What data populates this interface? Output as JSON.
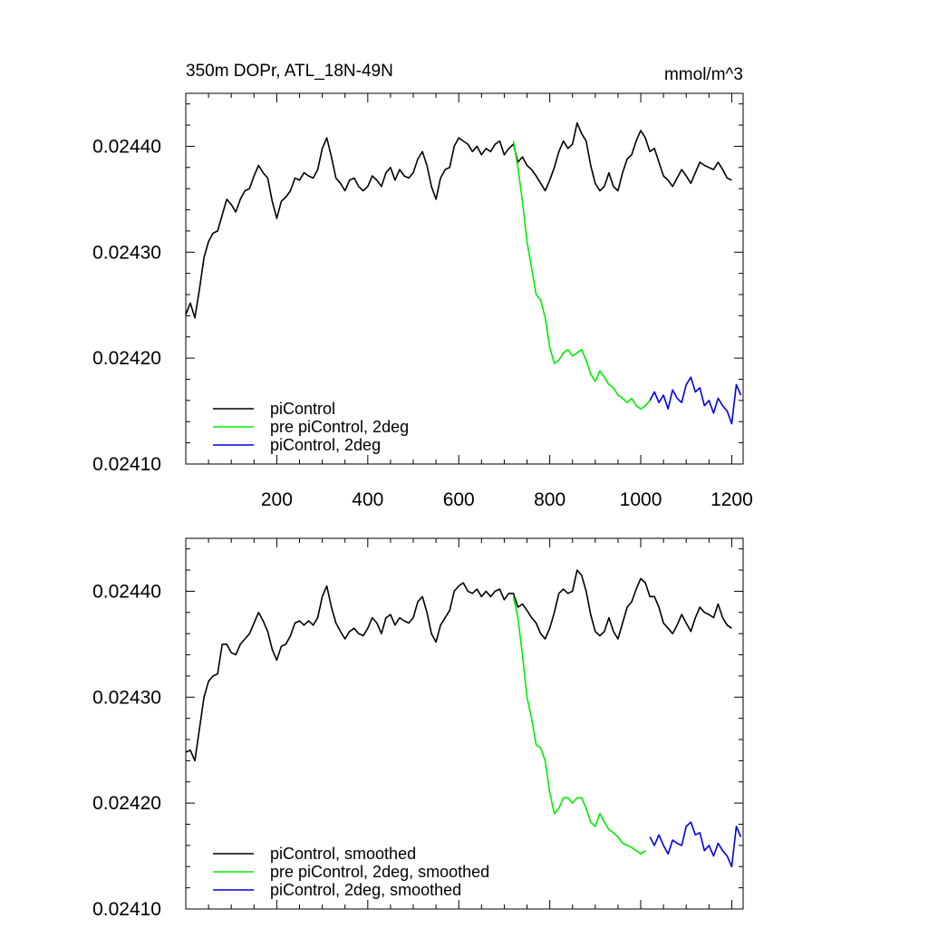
{
  "title_left": "350m DOPr, ATL_18N-49N",
  "title_right": "mmol/m^3",
  "colors": {
    "piControl": "#000000",
    "pre": "#00ee00",
    "deg2": "#0000dd"
  },
  "chart_data": [
    {
      "type": "line",
      "panel": "top",
      "xlim": [
        0,
        1225
      ],
      "ylim": [
        0.0241,
        0.02445
      ],
      "x_ticks": [
        200,
        400,
        600,
        800,
        1000,
        1200
      ],
      "x_tick_labels": [
        "200",
        "400",
        "600",
        "800",
        "1000",
        "1200"
      ],
      "y_ticks": [
        0.0241,
        0.0242,
        0.0243,
        0.0244
      ],
      "y_tick_labels": [
        "0.02410",
        "0.02420",
        "0.02430",
        "0.02440"
      ],
      "legend": [
        "piControl",
        "pre piControl, 2deg",
        "piControl, 2deg"
      ],
      "legend_position": "lower-left",
      "series": [
        {
          "name": "piControl",
          "color_key": "piControl",
          "x": [
            0,
            10,
            20,
            30,
            40,
            50,
            60,
            70,
            80,
            90,
            100,
            110,
            120,
            130,
            140,
            150,
            160,
            170,
            180,
            190,
            200,
            210,
            220,
            230,
            240,
            250,
            260,
            270,
            280,
            290,
            300,
            310,
            320,
            330,
            340,
            350,
            360,
            370,
            380,
            390,
            400,
            410,
            420,
            430,
            440,
            450,
            460,
            470,
            480,
            490,
            500,
            510,
            520,
            530,
            540,
            550,
            560,
            570,
            580,
            590,
            600,
            610,
            620,
            630,
            640,
            650,
            660,
            670,
            680,
            690,
            700,
            710,
            720,
            730,
            740,
            750,
            760,
            770,
            780,
            790,
            800,
            810,
            820,
            830,
            840,
            850,
            860,
            870,
            880,
            890,
            900,
            910,
            920,
            930,
            940,
            950,
            960,
            970,
            980,
            990,
            1000,
            1010,
            1020,
            1030,
            1040,
            1050,
            1060,
            1070,
            1080,
            1090,
            1100,
            1110,
            1120,
            1130,
            1140,
            1150,
            1160,
            1170,
            1180,
            1190,
            1200
          ],
          "y": [
            0.024241,
            0.024252,
            0.024238,
            0.024265,
            0.024295,
            0.02431,
            0.024318,
            0.02432,
            0.024335,
            0.02435,
            0.024345,
            0.024338,
            0.02435,
            0.024358,
            0.02436,
            0.024372,
            0.024382,
            0.024375,
            0.02437,
            0.024348,
            0.024332,
            0.024348,
            0.024352,
            0.024358,
            0.02437,
            0.024368,
            0.024375,
            0.024372,
            0.02437,
            0.024378,
            0.024398,
            0.024408,
            0.02439,
            0.02437,
            0.024365,
            0.024358,
            0.024368,
            0.02437,
            0.024362,
            0.024358,
            0.024362,
            0.024372,
            0.024368,
            0.024362,
            0.024375,
            0.02438,
            0.024368,
            0.024378,
            0.024372,
            0.02437,
            0.024375,
            0.024388,
            0.024395,
            0.024382,
            0.024362,
            0.02435,
            0.02437,
            0.024378,
            0.02438,
            0.0244,
            0.024408,
            0.024405,
            0.024402,
            0.024395,
            0.0244,
            0.024392,
            0.024398,
            0.024395,
            0.024402,
            0.024405,
            0.024392,
            0.024398,
            0.024402,
            0.024385,
            0.02439,
            0.024382,
            0.024378,
            0.024372,
            0.024365,
            0.024358,
            0.024368,
            0.02438,
            0.024395,
            0.024405,
            0.024398,
            0.024402,
            0.024422,
            0.024412,
            0.024405,
            0.024382,
            0.024365,
            0.024358,
            0.024362,
            0.024375,
            0.024362,
            0.024358,
            0.024375,
            0.024388,
            0.024392,
            0.024405,
            0.024415,
            0.024408,
            0.024395,
            0.024398,
            0.024385,
            0.024372,
            0.024368,
            0.024362,
            0.02437,
            0.024378,
            0.024372,
            0.024365,
            0.024375,
            0.024385,
            0.024382,
            0.02438,
            0.024378,
            0.024385,
            0.024378,
            0.02437,
            0.024368
          ]
        },
        {
          "name": "pre piControl, 2deg",
          "color_key": "pre",
          "x": [
            720,
            730,
            740,
            750,
            760,
            770,
            780,
            790,
            800,
            810,
            820,
            830,
            840,
            850,
            860,
            870,
            880,
            890,
            900,
            910,
            920,
            930,
            940,
            950,
            960,
            970,
            980,
            990,
            1000,
            1010,
            1020
          ],
          "y": [
            0.024405,
            0.02438,
            0.024348,
            0.02431,
            0.024285,
            0.02426,
            0.024255,
            0.024238,
            0.02421,
            0.024195,
            0.024198,
            0.024205,
            0.024208,
            0.024202,
            0.024205,
            0.024208,
            0.024198,
            0.024185,
            0.024178,
            0.024188,
            0.024182,
            0.024175,
            0.024172,
            0.024165,
            0.024162,
            0.024158,
            0.024162,
            0.024155,
            0.024152,
            0.024155,
            0.02416
          ]
        },
        {
          "name": "piControl, 2deg",
          "color_key": "deg2",
          "x": [
            1020,
            1030,
            1040,
            1050,
            1060,
            1070,
            1080,
            1090,
            1100,
            1110,
            1120,
            1130,
            1140,
            1150,
            1160,
            1170,
            1180,
            1190,
            1200,
            1210,
            1220
          ],
          "y": [
            0.02416,
            0.024168,
            0.024158,
            0.024165,
            0.024152,
            0.02417,
            0.024162,
            0.024158,
            0.024175,
            0.024182,
            0.024168,
            0.024172,
            0.024155,
            0.02416,
            0.024148,
            0.024162,
            0.024155,
            0.02415,
            0.024138,
            0.024175,
            0.024165
          ]
        }
      ]
    },
    {
      "type": "line",
      "panel": "bottom",
      "xlim": [
        0,
        1225
      ],
      "ylim": [
        0.0241,
        0.02445
      ],
      "y_ticks": [
        0.0241,
        0.0242,
        0.0243,
        0.0244
      ],
      "y_tick_labels": [
        "0.02410",
        "0.02420",
        "0.02430",
        "0.02440"
      ],
      "legend": [
        "piControl, smoothed",
        "pre piControl, 2deg, smoothed",
        "piControl, 2deg, smoothed"
      ],
      "legend_position": "lower-left",
      "series": [
        {
          "name": "piControl, smoothed",
          "color_key": "piControl",
          "x": [
            0,
            10,
            20,
            30,
            40,
            50,
            60,
            70,
            80,
            90,
            100,
            110,
            120,
            130,
            140,
            150,
            160,
            170,
            180,
            190,
            200,
            210,
            220,
            230,
            240,
            250,
            260,
            270,
            280,
            290,
            300,
            310,
            320,
            330,
            340,
            350,
            360,
            370,
            380,
            390,
            400,
            410,
            420,
            430,
            440,
            450,
            460,
            470,
            480,
            490,
            500,
            510,
            520,
            530,
            540,
            550,
            560,
            570,
            580,
            590,
            600,
            610,
            620,
            630,
            640,
            650,
            660,
            670,
            680,
            690,
            700,
            710,
            720,
            730,
            740,
            750,
            760,
            770,
            780,
            790,
            800,
            810,
            820,
            830,
            840,
            850,
            860,
            870,
            880,
            890,
            900,
            910,
            920,
            930,
            940,
            950,
            960,
            970,
            980,
            990,
            1000,
            1010,
            1020,
            1030,
            1040,
            1050,
            1060,
            1070,
            1080,
            1090,
            1100,
            1110,
            1120,
            1130,
            1140,
            1150,
            1160,
            1170,
            1180,
            1190,
            1200
          ],
          "y": [
            0.024248,
            0.02425,
            0.02424,
            0.02427,
            0.0243,
            0.024315,
            0.02432,
            0.024322,
            0.02435,
            0.02435,
            0.024342,
            0.02434,
            0.02435,
            0.024355,
            0.02436,
            0.02437,
            0.02438,
            0.024372,
            0.024362,
            0.024345,
            0.024335,
            0.024348,
            0.02435,
            0.024358,
            0.02437,
            0.024372,
            0.024368,
            0.024372,
            0.024368,
            0.024375,
            0.024395,
            0.024405,
            0.024385,
            0.02437,
            0.024362,
            0.024355,
            0.024362,
            0.024365,
            0.02436,
            0.024358,
            0.024365,
            0.024375,
            0.02437,
            0.02436,
            0.024375,
            0.024378,
            0.024368,
            0.024375,
            0.024372,
            0.02437,
            0.024375,
            0.02439,
            0.024395,
            0.02438,
            0.02436,
            0.024352,
            0.024368,
            0.024375,
            0.024382,
            0.0244,
            0.024405,
            0.024408,
            0.0244,
            0.024398,
            0.024402,
            0.024395,
            0.0244,
            0.024395,
            0.0244,
            0.024402,
            0.024392,
            0.024398,
            0.024398,
            0.024385,
            0.024388,
            0.024382,
            0.024375,
            0.02437,
            0.02436,
            0.024355,
            0.024365,
            0.02438,
            0.024398,
            0.024402,
            0.024398,
            0.0244,
            0.02442,
            0.024415,
            0.0244,
            0.024378,
            0.024362,
            0.024358,
            0.024362,
            0.024375,
            0.024362,
            0.024355,
            0.02437,
            0.024385,
            0.02439,
            0.024402,
            0.024412,
            0.024408,
            0.024395,
            0.024395,
            0.024385,
            0.02437,
            0.024365,
            0.02436,
            0.024368,
            0.024378,
            0.02437,
            0.024362,
            0.024375,
            0.024385,
            0.02438,
            0.024378,
            0.024375,
            0.024388,
            0.024375,
            0.024368,
            0.024365
          ]
        },
        {
          "name": "pre piControl, 2deg, smoothed",
          "color_key": "pre",
          "x": [
            720,
            730,
            740,
            750,
            760,
            770,
            780,
            790,
            800,
            810,
            820,
            830,
            840,
            850,
            860,
            870,
            880,
            890,
            900,
            910,
            920,
            930,
            940,
            950,
            960,
            970,
            980,
            990,
            1000,
            1010
          ],
          "y": [
            0.024395,
            0.024375,
            0.02434,
            0.0243,
            0.02428,
            0.024255,
            0.024252,
            0.02424,
            0.02421,
            0.02419,
            0.024195,
            0.024205,
            0.024205,
            0.0242,
            0.024205,
            0.024205,
            0.024195,
            0.024182,
            0.024178,
            0.02419,
            0.024182,
            0.024175,
            0.024172,
            0.024168,
            0.024162,
            0.02416,
            0.024158,
            0.024155,
            0.024152,
            0.024155
          ]
        },
        {
          "name": "piControl, 2deg, smoothed",
          "color_key": "deg2",
          "x": [
            1020,
            1030,
            1040,
            1050,
            1060,
            1070,
            1080,
            1090,
            1100,
            1110,
            1120,
            1130,
            1140,
            1150,
            1160,
            1170,
            1180,
            1190,
            1200,
            1210,
            1220
          ],
          "y": [
            0.024168,
            0.02416,
            0.02417,
            0.02416,
            0.024152,
            0.024165,
            0.024162,
            0.02416,
            0.024178,
            0.024182,
            0.02417,
            0.024172,
            0.024155,
            0.02416,
            0.02415,
            0.024162,
            0.024155,
            0.02415,
            0.02414,
            0.024178,
            0.024168
          ]
        }
      ]
    }
  ]
}
